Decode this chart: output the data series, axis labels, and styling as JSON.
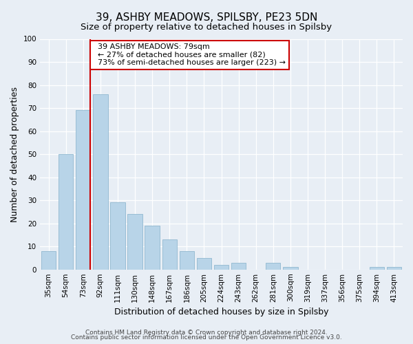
{
  "title": "39, ASHBY MEADOWS, SPILSBY, PE23 5DN",
  "subtitle": "Size of property relative to detached houses in Spilsby",
  "xlabel": "Distribution of detached houses by size in Spilsby",
  "ylabel": "Number of detached properties",
  "bar_labels": [
    "35sqm",
    "54sqm",
    "73sqm",
    "92sqm",
    "111sqm",
    "130sqm",
    "148sqm",
    "167sqm",
    "186sqm",
    "205sqm",
    "224sqm",
    "243sqm",
    "262sqm",
    "281sqm",
    "300sqm",
    "319sqm",
    "337sqm",
    "356sqm",
    "375sqm",
    "394sqm",
    "413sqm"
  ],
  "bar_values": [
    8,
    50,
    69,
    76,
    29,
    24,
    19,
    13,
    8,
    5,
    2,
    3,
    0,
    3,
    1,
    0,
    0,
    0,
    0,
    1,
    1
  ],
  "bar_color": "#b8d4e8",
  "bar_edge_color": "#90b8d0",
  "ylim": [
    0,
    100
  ],
  "yticks": [
    0,
    10,
    20,
    30,
    40,
    50,
    60,
    70,
    80,
    90,
    100
  ],
  "vline_bar_index": 2,
  "vline_color": "#cc0000",
  "annotation_title": "39 ASHBY MEADOWS: 79sqm",
  "annotation_line1": "← 27% of detached houses are smaller (82)",
  "annotation_line2": "73% of semi-detached houses are larger (223) →",
  "annotation_box_facecolor": "#ffffff",
  "annotation_box_edgecolor": "#cc0000",
  "footer1": "Contains HM Land Registry data © Crown copyright and database right 2024.",
  "footer2": "Contains public sector information licensed under the Open Government Licence v3.0.",
  "background_color": "#e8eef5",
  "title_fontsize": 11,
  "subtitle_fontsize": 9.5,
  "axis_label_fontsize": 9,
  "tick_fontsize": 7.5,
  "annotation_fontsize": 8,
  "footer_fontsize": 6.5
}
